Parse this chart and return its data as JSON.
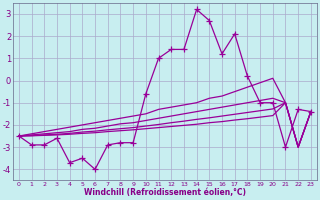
{
  "xlabel": "Windchill (Refroidissement éolien,°C)",
  "background_color": "#c8eef0",
  "grid_color": "#aaaacc",
  "line_color": "#990099",
  "x": [
    0,
    1,
    2,
    3,
    4,
    5,
    6,
    7,
    8,
    9,
    10,
    11,
    12,
    13,
    14,
    15,
    16,
    17,
    18,
    19,
    20,
    21,
    22,
    23
  ],
  "y_main": [
    -2.5,
    -2.9,
    -2.9,
    -2.6,
    -3.7,
    -3.5,
    -4.0,
    -2.9,
    -2.8,
    -2.8,
    -0.6,
    1.0,
    1.4,
    1.4,
    3.2,
    2.7,
    1.2,
    2.1,
    0.2,
    -1.0,
    -1.0,
    -3.0,
    -1.3,
    -1.4
  ],
  "y_line1": [
    -2.5,
    -2.4,
    -2.3,
    -2.2,
    -2.1,
    -2.0,
    -1.9,
    -1.8,
    -1.7,
    -1.6,
    -1.5,
    -1.3,
    -1.2,
    -1.1,
    -1.0,
    -0.8,
    -0.7,
    -0.5,
    -0.3,
    -0.1,
    0.1,
    -1.0,
    -3.0,
    -1.4
  ],
  "y_line2": [
    -2.5,
    -2.45,
    -2.4,
    -2.35,
    -2.3,
    -2.2,
    -2.15,
    -2.05,
    -1.95,
    -1.9,
    -1.8,
    -1.7,
    -1.6,
    -1.5,
    -1.4,
    -1.3,
    -1.2,
    -1.1,
    -1.0,
    -0.9,
    -0.8,
    -1.0,
    -3.0,
    -1.4
  ],
  "y_line3": [
    -2.5,
    -2.48,
    -2.45,
    -2.42,
    -2.38,
    -2.32,
    -2.28,
    -2.22,
    -2.17,
    -2.12,
    -2.05,
    -1.98,
    -1.9,
    -1.83,
    -1.75,
    -1.68,
    -1.6,
    -1.52,
    -1.44,
    -1.36,
    -1.28,
    -1.0,
    -3.0,
    -1.4
  ],
  "y_line4": [
    -2.5,
    -2.49,
    -2.47,
    -2.45,
    -2.42,
    -2.38,
    -2.35,
    -2.3,
    -2.26,
    -2.22,
    -2.17,
    -2.12,
    -2.07,
    -2.02,
    -1.97,
    -1.9,
    -1.85,
    -1.78,
    -1.72,
    -1.65,
    -1.58,
    -1.0,
    -3.0,
    -1.4
  ],
  "ylim": [
    -4.5,
    3.5
  ],
  "xlim": [
    -0.5,
    23.5
  ],
  "yticks": [
    -4,
    -3,
    -2,
    -1,
    0,
    1,
    2,
    3
  ],
  "xticks": [
    0,
    1,
    2,
    3,
    4,
    5,
    6,
    7,
    8,
    9,
    10,
    11,
    12,
    13,
    14,
    15,
    16,
    17,
    18,
    19,
    20,
    21,
    22,
    23
  ]
}
